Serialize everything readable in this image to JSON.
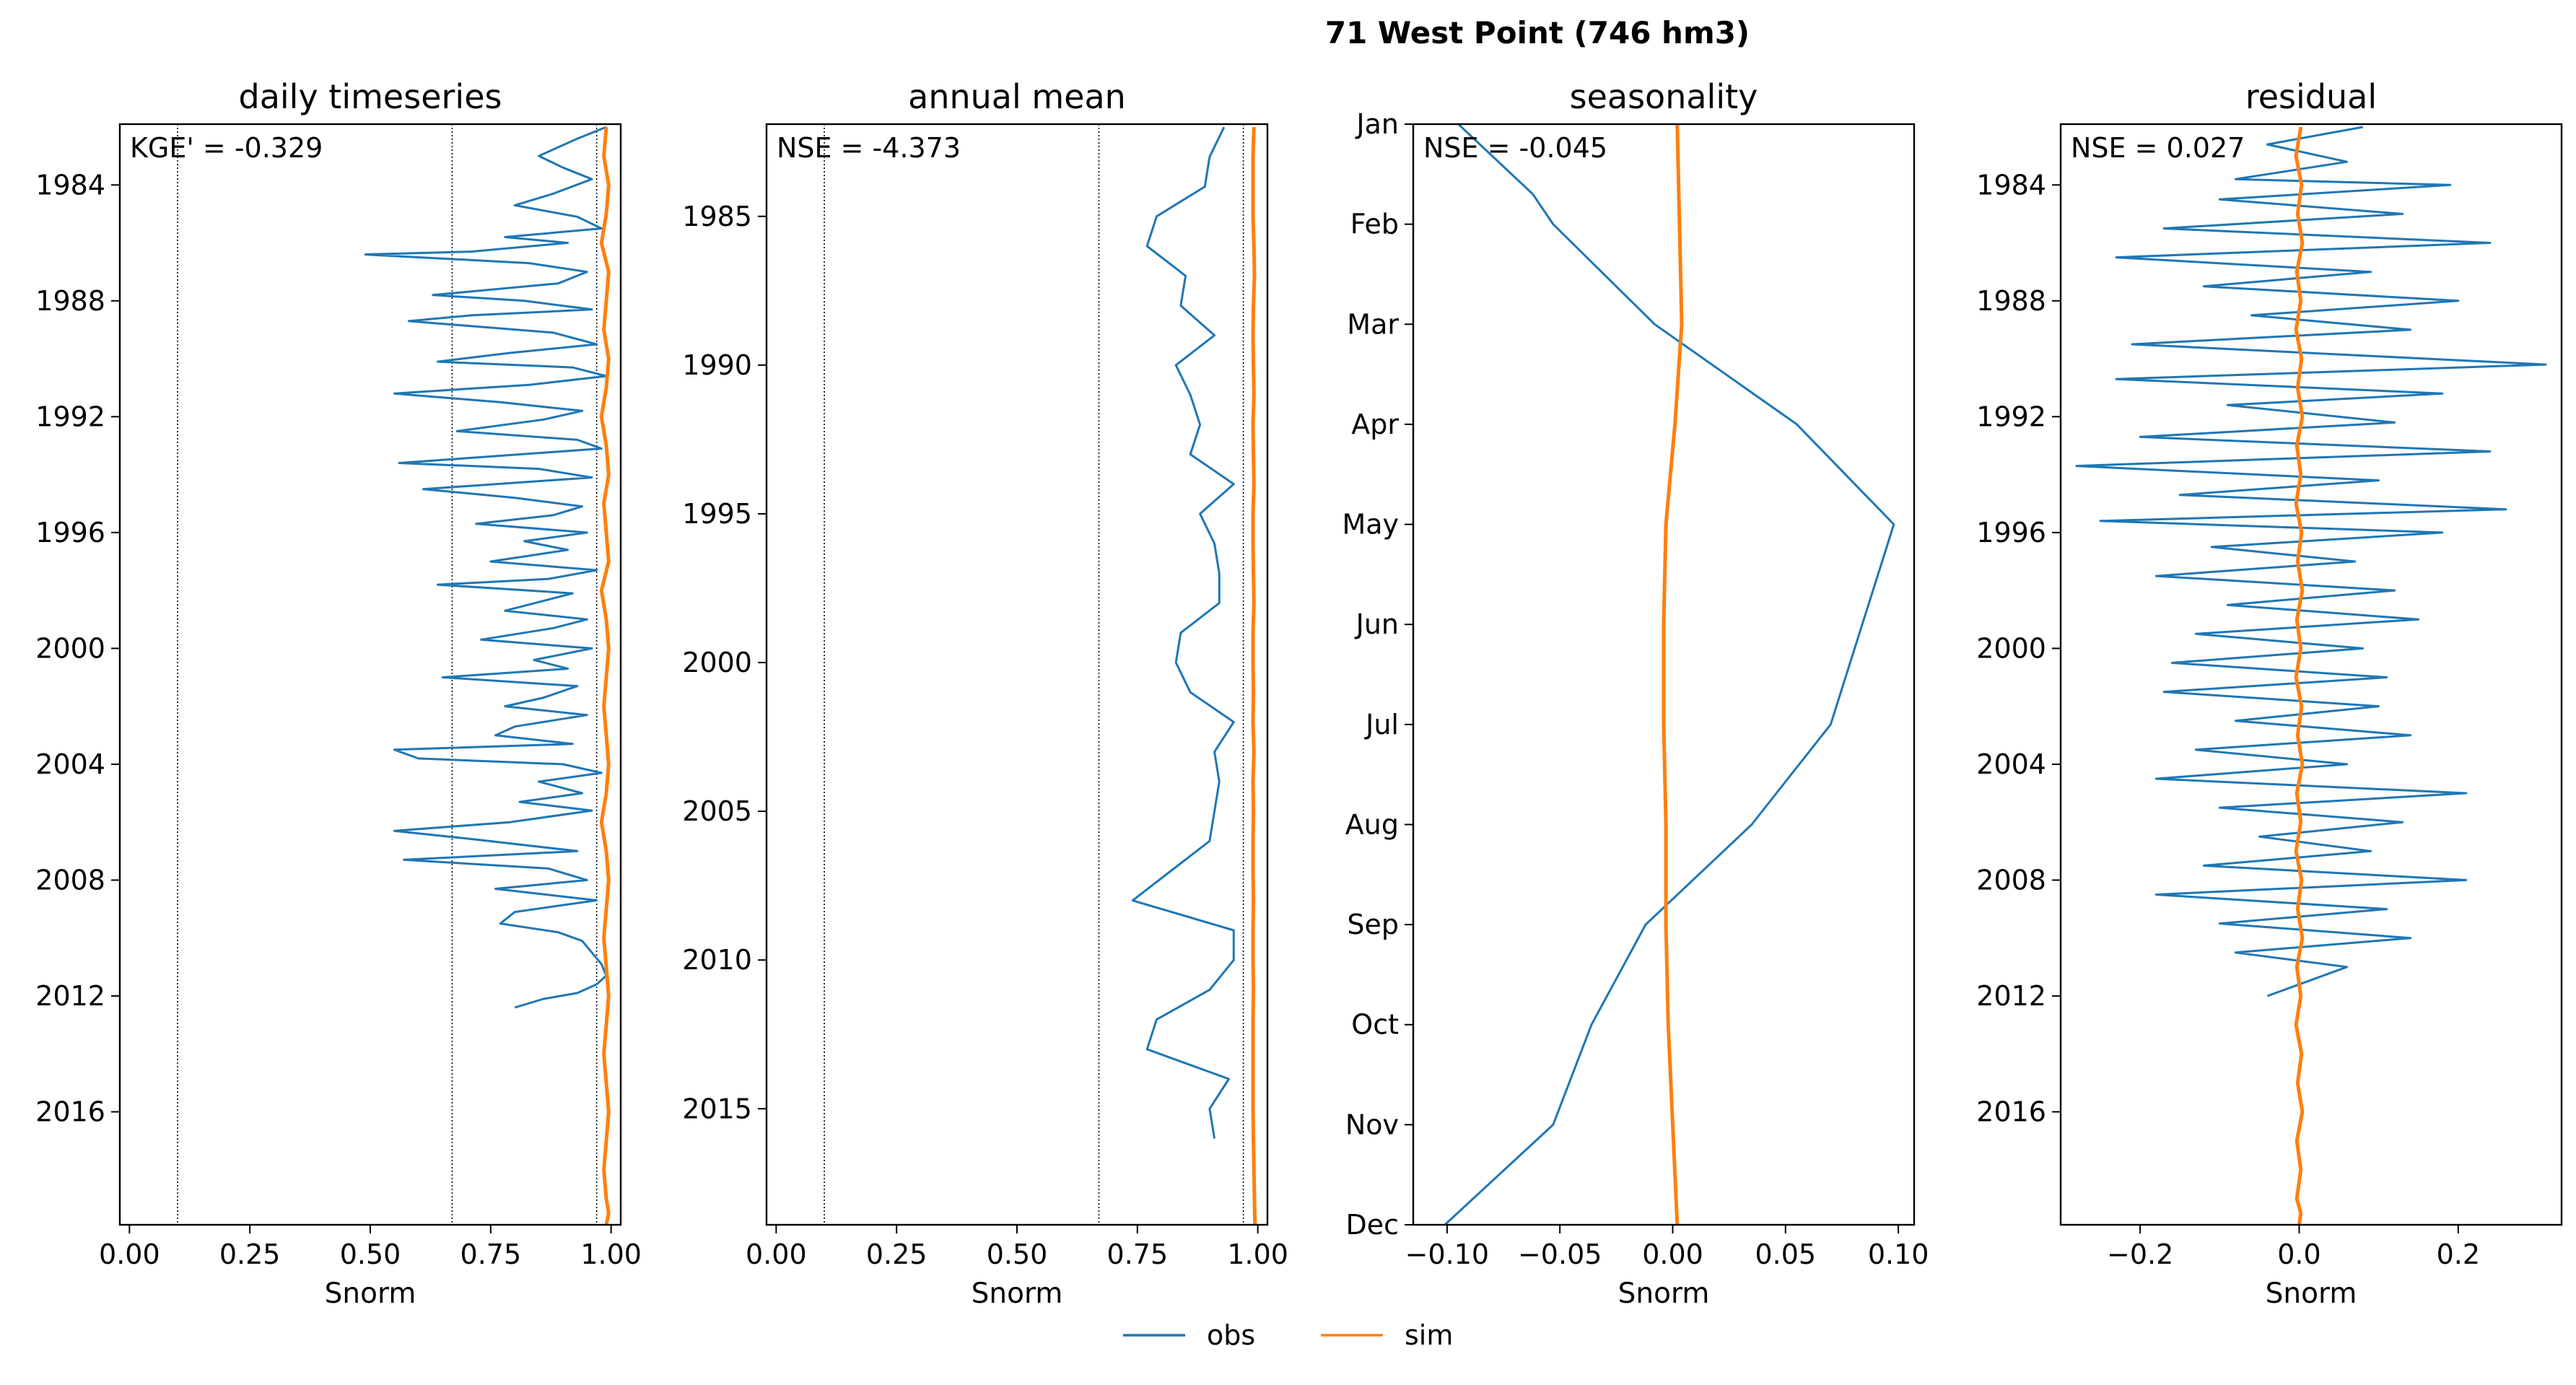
{
  "figure_title": "71  West Point (746 hm3)",
  "colors": {
    "obs": "#1f77b4",
    "sim": "#ff7f0e",
    "axis": "#000000"
  },
  "legend": [
    {
      "label": "obs",
      "color": "#1f77b4"
    },
    {
      "label": "sim",
      "color": "#ff7f0e"
    }
  ],
  "chart_data": [
    {
      "type": "line",
      "title": "daily timeseries",
      "xlabel": "Snorm",
      "ylabel": "",
      "metric_text": "KGE' = -0.329",
      "xlim": [
        -0.02,
        1.02
      ],
      "ylim": [
        2019.9,
        1981.9
      ],
      "xticks": [
        0.0,
        0.25,
        0.5,
        0.75,
        1.0
      ],
      "xtick_labels": [
        "0.00",
        "0.25",
        "0.50",
        "0.75",
        "1.00"
      ],
      "yticks": [
        1984,
        1988,
        1992,
        1996,
        2000,
        2004,
        2008,
        2012,
        2016
      ],
      "ytick_labels": [
        "1984",
        "1988",
        "1992",
        "1996",
        "2000",
        "2004",
        "2008",
        "2012",
        "2016"
      ],
      "vlines": [
        0.1,
        0.67,
        0.97
      ],
      "grid": false,
      "series": [
        {
          "name": "obs",
          "x": [
            0.99,
            0.93,
            0.85,
            0.9,
            0.96,
            0.88,
            0.8,
            0.93,
            0.98,
            0.78,
            0.91,
            0.71,
            0.49,
            0.83,
            0.95,
            0.89,
            0.63,
            0.82,
            0.96,
            0.71,
            0.58,
            0.88,
            0.97,
            0.79,
            0.64,
            0.92,
            0.99,
            0.83,
            0.55,
            0.77,
            0.94,
            0.86,
            0.68,
            0.93,
            0.98,
            0.56,
            0.85,
            0.96,
            0.61,
            0.8,
            0.94,
            0.88,
            0.72,
            0.95,
            0.82,
            0.91,
            0.75,
            0.97,
            0.87,
            0.64,
            0.92,
            0.85,
            0.78,
            0.95,
            0.88,
            0.73,
            0.96,
            0.84,
            0.91,
            0.65,
            0.93,
            0.86,
            0.78,
            0.95,
            0.8,
            0.76,
            0.92,
            0.55,
            0.6,
            0.9,
            0.98,
            0.85,
            0.94,
            0.81,
            0.96,
            0.79,
            0.55,
            0.72,
            0.93,
            0.57,
            0.87,
            0.95,
            0.76,
            0.97,
            0.8,
            0.77,
            0.89,
            0.94,
            0.96,
            0.98,
            0.99,
            0.97,
            0.93,
            0.86,
            0.8
          ],
          "y": [
            1982.0,
            1982.4,
            1983.0,
            1983.4,
            1983.8,
            1984.3,
            1984.7,
            1985.1,
            1985.5,
            1985.8,
            1986.0,
            1986.3,
            1986.4,
            1986.7,
            1987.0,
            1987.4,
            1987.8,
            1988.0,
            1988.3,
            1988.5,
            1988.7,
            1989.1,
            1989.5,
            1989.8,
            1990.1,
            1990.3,
            1990.6,
            1990.9,
            1991.2,
            1991.5,
            1991.8,
            1992.1,
            1992.5,
            1992.8,
            1993.1,
            1993.6,
            1993.8,
            1994.1,
            1994.5,
            1994.8,
            1995.1,
            1995.4,
            1995.7,
            1996.0,
            1996.3,
            1996.6,
            1997.0,
            1997.3,
            1997.6,
            1997.8,
            1998.1,
            1998.4,
            1998.7,
            1999.0,
            1999.3,
            1999.7,
            2000.0,
            2000.4,
            2000.7,
            2001.0,
            2001.3,
            2001.7,
            2002.0,
            2002.3,
            2002.7,
            2003.0,
            2003.3,
            2003.5,
            2003.8,
            2004.0,
            2004.3,
            2004.6,
            2005.0,
            2005.3,
            2005.6,
            2006.0,
            2006.3,
            2006.6,
            2007.0,
            2007.3,
            2007.6,
            2008.0,
            2008.3,
            2008.7,
            2009.1,
            2009.5,
            2009.8,
            2010.1,
            2010.5,
            2010.9,
            2011.3,
            2011.6,
            2011.9,
            2012.1,
            2012.4
          ]
        },
        {
          "name": "sim",
          "x": [
            0.99,
            0.985,
            0.995,
            0.99,
            0.98,
            0.995,
            0.99,
            0.985,
            0.995,
            0.99,
            0.98,
            0.99,
            0.995,
            0.985,
            0.99,
            0.995,
            0.98,
            0.99,
            0.995,
            0.99,
            0.985,
            0.99,
            0.995,
            0.99,
            0.98,
            0.99,
            0.995,
            0.99,
            0.985,
            0.99,
            0.995,
            0.99,
            0.985,
            0.99,
            0.995,
            0.99,
            0.985,
            0.99,
            0.995,
            0.99
          ],
          "y": [
            1982.0,
            1983.0,
            1984.0,
            1985.0,
            1986.0,
            1987.0,
            1988.0,
            1989.0,
            1990.0,
            1991.0,
            1992.0,
            1993.0,
            1994.0,
            1995.0,
            1996.0,
            1997.0,
            1998.0,
            1999.0,
            2000.0,
            2001.0,
            2002.0,
            2003.0,
            2004.0,
            2005.0,
            2006.0,
            2007.0,
            2008.0,
            2009.0,
            2010.0,
            2011.0,
            2012.0,
            2013.0,
            2014.0,
            2015.0,
            2016.0,
            2017.0,
            2018.0,
            2019.0,
            2019.5,
            2019.9
          ]
        }
      ]
    },
    {
      "type": "line",
      "title": "annual mean",
      "xlabel": "Snorm",
      "ylabel": "",
      "metric_text": "NSE = -4.373",
      "xlim": [
        -0.02,
        1.02
      ],
      "ylim": [
        2018.9,
        1981.9
      ],
      "xticks": [
        0.0,
        0.25,
        0.5,
        0.75,
        1.0
      ],
      "xtick_labels": [
        "0.00",
        "0.25",
        "0.50",
        "0.75",
        "1.00"
      ],
      "yticks": [
        1985,
        1990,
        1995,
        2000,
        2005,
        2010,
        2015
      ],
      "ytick_labels": [
        "1985",
        "1990",
        "1995",
        "2000",
        "2005",
        "2010",
        "2015"
      ],
      "vlines": [
        0.1,
        0.67,
        0.97
      ],
      "grid": false,
      "series": [
        {
          "name": "obs",
          "x": [
            0.93,
            0.9,
            0.89,
            0.79,
            0.77,
            0.85,
            0.84,
            0.91,
            0.83,
            0.86,
            0.88,
            0.86,
            0.95,
            0.88,
            0.91,
            0.92,
            0.92,
            0.84,
            0.83,
            0.86,
            0.95,
            0.91,
            0.92,
            0.91,
            0.9,
            0.82,
            0.74,
            0.95,
            0.95,
            0.9,
            0.79,
            0.77,
            0.94,
            0.9,
            0.91
          ],
          "y": [
            1982,
            1983,
            1984,
            1985,
            1986,
            1987,
            1988,
            1989,
            1990,
            1991,
            1992,
            1993,
            1994,
            1995,
            1996,
            1997,
            1998,
            1999,
            2000,
            2001,
            2002,
            2003,
            2004,
            2005,
            2006,
            2007,
            2008,
            2009,
            2010,
            2011,
            2012,
            2013,
            2014,
            2015,
            2016
          ]
        },
        {
          "name": "sim",
          "x": [
            0.992,
            0.99,
            0.99,
            0.99,
            0.992,
            0.993,
            0.991,
            0.99,
            0.991,
            0.992,
            0.99,
            0.991,
            0.992,
            0.99,
            0.99,
            0.991,
            0.992,
            0.99,
            0.99,
            0.991,
            0.99,
            0.992,
            0.99,
            0.991,
            0.99,
            0.99,
            0.991,
            0.99,
            0.99,
            0.991,
            0.99,
            0.99,
            0.99,
            0.99,
            0.991,
            0.992,
            0.993,
            0.994
          ],
          "y": [
            1982,
            1983,
            1984,
            1985,
            1986,
            1987,
            1988,
            1989,
            1990,
            1991,
            1992,
            1993,
            1994,
            1995,
            1996,
            1997,
            1998,
            1999,
            2000,
            2001,
            2002,
            2003,
            2004,
            2005,
            2006,
            2007,
            2008,
            2009,
            2010,
            2011,
            2012,
            2013,
            2014,
            2015,
            2016,
            2017,
            2018,
            2018.9
          ]
        }
      ]
    },
    {
      "type": "line",
      "title": "seasonality",
      "xlabel": "Snorm",
      "ylabel": "",
      "metric_text": "NSE = -0.045",
      "xlim": [
        -0.115,
        0.107
      ],
      "ylim": [
        12,
        1
      ],
      "xticks": [
        -0.1,
        -0.05,
        0.0,
        0.05,
        0.1
      ],
      "xtick_labels": [
        "−0.10",
        "−0.05",
        "0.00",
        "0.05",
        "0.10"
      ],
      "yticks": [
        1,
        2,
        3,
        4,
        5,
        6,
        7,
        8,
        9,
        10,
        11,
        12
      ],
      "ytick_labels": [
        "Jan",
        "Feb",
        "Mar",
        "Apr",
        "May",
        "Jun",
        "Jul",
        "Aug",
        "Sep",
        "Oct",
        "Nov",
        "Dec"
      ],
      "vlines": [],
      "grid": false,
      "series": [
        {
          "name": "obs",
          "x": [
            -0.095,
            -0.062,
            -0.053,
            -0.008,
            0.055,
            0.098,
            0.084,
            0.07,
            0.035,
            -0.012,
            -0.036,
            -0.053,
            -0.101
          ],
          "y": [
            1.0,
            1.7,
            2.0,
            3.0,
            4.0,
            5.0,
            6.0,
            7.0,
            8.0,
            9.0,
            10.0,
            11.0,
            12.0
          ]
        },
        {
          "name": "sim",
          "x": [
            0.002,
            0.003,
            0.004,
            0.001,
            -0.003,
            -0.004,
            -0.004,
            -0.003,
            -0.003,
            -0.002,
            0.0,
            0.002
          ],
          "y": [
            1,
            2,
            3,
            4,
            5,
            6,
            7,
            8,
            9,
            10,
            11,
            12
          ]
        }
      ]
    },
    {
      "type": "line",
      "title": "residual",
      "xlabel": "Snorm",
      "ylabel": "",
      "metric_text": "NSE = 0.027",
      "xlim": [
        -0.3,
        0.33
      ],
      "ylim": [
        2019.9,
        1981.9
      ],
      "xticks": [
        -0.2,
        0.0,
        0.2
      ],
      "xtick_labels": [
        "−0.2",
        "0.0",
        "0.2"
      ],
      "yticks": [
        1984,
        1988,
        1992,
        1996,
        2000,
        2004,
        2008,
        2012,
        2016
      ],
      "ytick_labels": [
        "1984",
        "1988",
        "1992",
        "1996",
        "2000",
        "2004",
        "2008",
        "2012",
        "2016"
      ],
      "vlines": [],
      "grid": false,
      "series": [
        {
          "name": "obs",
          "x": [
            0.08,
            -0.04,
            0.06,
            -0.08,
            0.19,
            -0.1,
            0.13,
            -0.17,
            0.24,
            -0.23,
            0.09,
            -0.12,
            0.2,
            -0.06,
            0.14,
            -0.21,
            0.31,
            -0.23,
            0.18,
            -0.09,
            0.12,
            -0.2,
            0.24,
            -0.28,
            0.1,
            -0.15,
            0.26,
            -0.25,
            0.18,
            -0.11,
            0.07,
            -0.18,
            0.12,
            -0.09,
            0.15,
            -0.13,
            0.08,
            -0.16,
            0.11,
            -0.17,
            0.1,
            -0.08,
            0.14,
            -0.13,
            0.06,
            -0.18,
            0.21,
            -0.1,
            0.13,
            -0.05,
            0.09,
            -0.12,
            0.21,
            -0.18,
            0.11,
            -0.1,
            0.14,
            -0.08,
            0.06,
            -0.04
          ],
          "y": [
            1982.0,
            1982.6,
            1983.2,
            1983.8,
            1984.0,
            1984.5,
            1985.0,
            1985.5,
            1986.0,
            1986.5,
            1987.0,
            1987.5,
            1988.0,
            1988.5,
            1989.0,
            1989.5,
            1990.2,
            1990.7,
            1991.2,
            1991.6,
            1992.2,
            1992.7,
            1993.2,
            1993.7,
            1994.2,
            1994.7,
            1995.2,
            1995.6,
            1996.0,
            1996.5,
            1997.0,
            1997.5,
            1998.0,
            1998.5,
            1999.0,
            1999.5,
            2000.0,
            2000.5,
            2001.0,
            2001.5,
            2002.0,
            2002.5,
            2003.0,
            2003.5,
            2004.0,
            2004.5,
            2005.0,
            2005.5,
            2006.0,
            2006.5,
            2007.0,
            2007.5,
            2008.0,
            2008.5,
            2009.0,
            2009.5,
            2010.0,
            2010.5,
            2011.0,
            2012.0
          ]
        },
        {
          "name": "sim",
          "x": [
            0.002,
            -0.004,
            0.003,
            -0.002,
            0.004,
            -0.003,
            0.002,
            -0.004,
            0.003,
            -0.002,
            0.004,
            -0.003,
            0.002,
            -0.004,
            0.003,
            -0.002,
            0.004,
            -0.003,
            0.002,
            -0.004,
            0.003,
            -0.002,
            0.004,
            -0.003,
            0.002,
            -0.004,
            0.003,
            -0.002,
            0.004,
            -0.003,
            0.002,
            -0.004,
            0.003,
            -0.002,
            0.004,
            -0.003,
            0.002,
            -0.003,
            0.002,
            0.0
          ],
          "y": [
            1982.0,
            1983.0,
            1984.0,
            1985.0,
            1986.0,
            1987.0,
            1988.0,
            1989.0,
            1990.0,
            1991.0,
            1992.0,
            1993.0,
            1994.0,
            1995.0,
            1996.0,
            1997.0,
            1998.0,
            1999.0,
            2000.0,
            2001.0,
            2002.0,
            2003.0,
            2004.0,
            2005.0,
            2006.0,
            2007.0,
            2008.0,
            2009.0,
            2010.0,
            2011.0,
            2012.0,
            2013.0,
            2014.0,
            2015.0,
            2016.0,
            2017.0,
            2018.0,
            2019.0,
            2019.5,
            2019.9
          ]
        }
      ]
    }
  ]
}
